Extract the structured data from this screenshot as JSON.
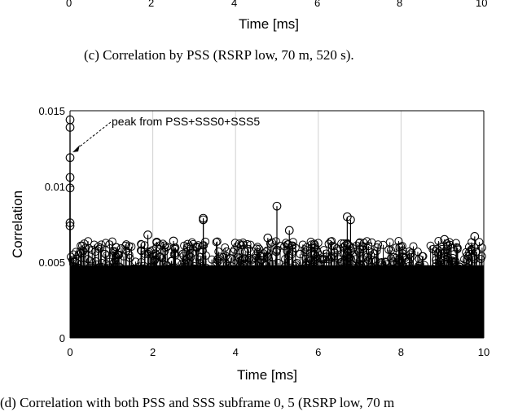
{
  "top_panel": {
    "x_ticks": [
      "0",
      "2",
      "4",
      "6",
      "8",
      "10"
    ],
    "xlabel": "Time [ms]",
    "caption": "(c) Correlation by PSS (RSRP low, 70 m, 520 s)."
  },
  "chart_data": {
    "type": "scatter",
    "title": "",
    "xlabel": "Time [ms]",
    "ylabel": "Correlation",
    "xlim": [
      0,
      10
    ],
    "ylim": [
      0,
      0.015
    ],
    "x_ticks": [
      "0",
      "2",
      "4",
      "6",
      "8",
      "10"
    ],
    "y_ticks": [
      "0",
      "0.005",
      "0.01",
      "0.015"
    ],
    "grid": "vertical",
    "marker": "open circle stems",
    "annotation": "peak from PSS+SSS0+SSS5",
    "series": [
      {
        "name": "",
        "x": [
          0.0,
          0.0,
          0.0,
          0.0,
          0.0,
          0.0,
          0.0,
          3.22,
          3.22,
          5.0,
          5.3,
          6.7,
          6.78,
          2.5,
          1.88,
          9.78,
          9.05,
          4.78
        ],
        "y": [
          0.0144,
          0.0139,
          0.0119,
          0.0106,
          0.0099,
          0.0076,
          0.0074,
          0.0079,
          0.0078,
          0.0087,
          0.0071,
          0.008,
          0.0078,
          0.0064,
          0.0068,
          0.0067,
          0.0065,
          0.0066
        ]
      }
    ],
    "noise_band": {
      "x_start": 0,
      "x_end": 10,
      "solid_fill_level": 0.0048,
      "scatter_level_low": 0.005,
      "scatter_level_high": 0.0066
    }
  },
  "caption": "(d) Correlation with both PSS and SSS subframe 0, 5 (RSRP low, 70 m"
}
